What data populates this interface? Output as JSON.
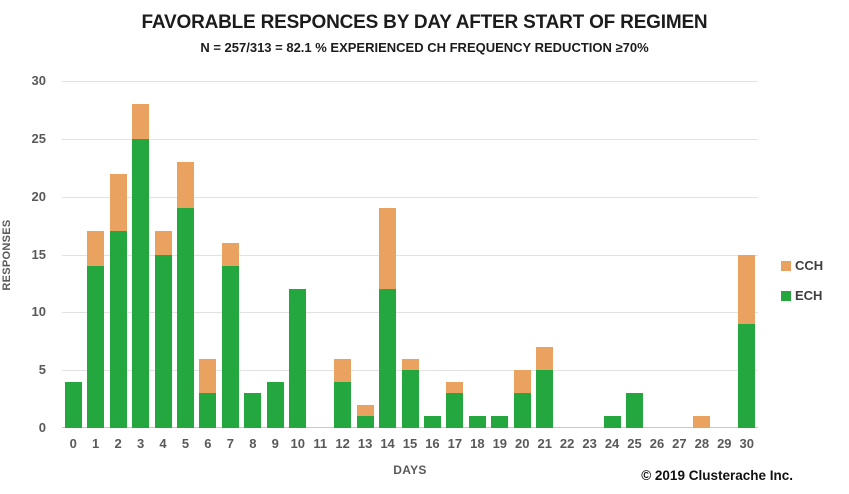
{
  "title": "FAVORABLE RESPONCES BY DAY AFTER START OF REGIMEN",
  "subtitle": "N = 257/313 = 82.1 % EXPERIENCED CH FREQUENCY REDUCTION ≥70%",
  "copyright": "© 2019 Clusterache Inc.",
  "colors": {
    "ech_green": "#24a73e",
    "cch_orange": "#eaa260",
    "gridline": "#e2e2e2",
    "axis_line": "#c8c8c8",
    "tick_text": "#595959",
    "title_text": "#1c1c1c"
  },
  "chart_data": {
    "type": "bar",
    "stacked": true,
    "title": "FAVORABLE RESPONCES BY DAY AFTER START OF REGIMEN",
    "subtitle": "N = 257/313 = 82.1 % EXPERIENCED CH FREQUENCY REDUCTION ≥70%",
    "xlabel": "DAYS",
    "ylabel": "RESPONSES",
    "ylim": [
      0,
      30
    ],
    "y_ticks": [
      0,
      5,
      10,
      15,
      20,
      25,
      30
    ],
    "grid": true,
    "legend_position": "right",
    "categories": [
      "0",
      "1",
      "2",
      "3",
      "4",
      "5",
      "6",
      "7",
      "8",
      "9",
      "10",
      "11",
      "12",
      "13",
      "14",
      "15",
      "16",
      "17",
      "18",
      "19",
      "20",
      "21",
      "22",
      "23",
      "24",
      "25",
      "26",
      "27",
      "28",
      "29",
      "30"
    ],
    "series": [
      {
        "name": "ECH",
        "color": "#24a73e",
        "values": [
          4,
          14,
          17,
          25,
          15,
          19,
          3,
          14,
          3,
          4,
          12,
          0,
          4,
          1,
          12,
          5,
          1,
          3,
          1,
          1,
          3,
          5,
          0,
          0,
          1,
          3,
          0,
          0,
          0,
          0,
          9
        ]
      },
      {
        "name": "CCH",
        "color": "#eaa260",
        "values": [
          0,
          3,
          5,
          3,
          2,
          4,
          3,
          2,
          0,
          0,
          0,
          0,
          2,
          1,
          7,
          1,
          0,
          1,
          0,
          0,
          2,
          2,
          0,
          0,
          0,
          0,
          0,
          0,
          1,
          0,
          6
        ]
      }
    ],
    "legend": [
      {
        "label": "CCH",
        "color": "#eaa260"
      },
      {
        "label": "ECH",
        "color": "#24a73e"
      }
    ]
  }
}
